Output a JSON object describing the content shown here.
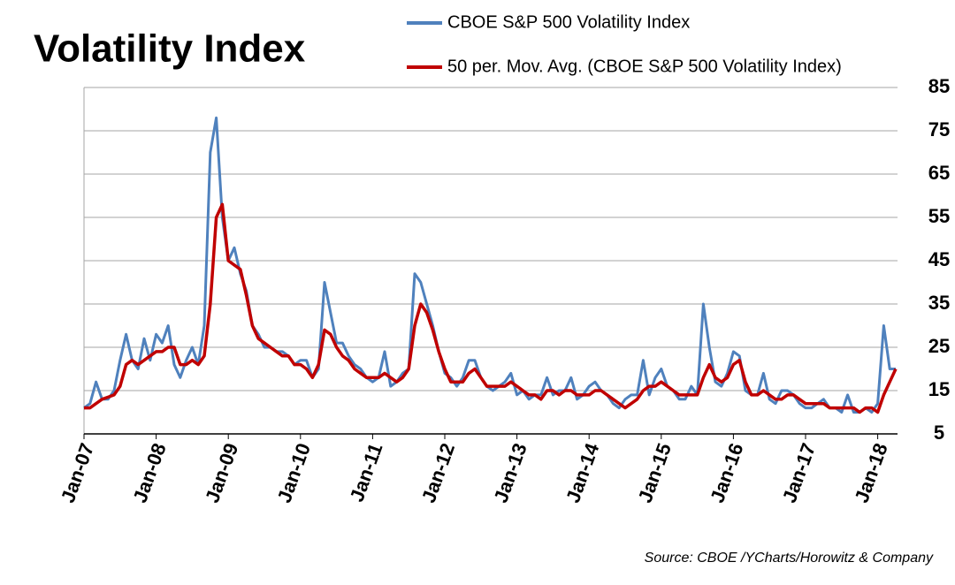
{
  "chart_data": {
    "type": "line",
    "title": "Volatility Index",
    "source": "Source:  CBOE /YCharts/Horowitz & Company",
    "categories": [
      "Jan-07",
      null,
      null,
      null,
      null,
      null,
      null,
      null,
      null,
      null,
      null,
      null,
      "Jan-08",
      null,
      null,
      null,
      null,
      null,
      null,
      null,
      null,
      null,
      null,
      null,
      "Jan-09",
      null,
      null,
      null,
      null,
      null,
      null,
      null,
      null,
      null,
      null,
      null,
      "Jan-10",
      null,
      null,
      null,
      null,
      null,
      null,
      null,
      null,
      null,
      null,
      null,
      "Jan-11",
      null,
      null,
      null,
      null,
      null,
      null,
      null,
      null,
      null,
      null,
      null,
      "Jan-12",
      null,
      null,
      null,
      null,
      null,
      null,
      null,
      null,
      null,
      null,
      null,
      "Jan-13",
      null,
      null,
      null,
      null,
      null,
      null,
      null,
      null,
      null,
      null,
      null,
      "Jan-14",
      null,
      null,
      null,
      null,
      null,
      null,
      null,
      null,
      null,
      null,
      null,
      "Jan-15",
      null,
      null,
      null,
      null,
      null,
      null,
      null,
      null,
      null,
      null,
      null,
      "Jan-16",
      null,
      null,
      null,
      null,
      null,
      null,
      null,
      null,
      null,
      null,
      null,
      "Jan-17",
      null,
      null,
      null,
      null,
      null,
      null,
      null,
      null,
      null,
      null,
      null,
      "Jan-18",
      null,
      null,
      null
    ],
    "series": [
      {
        "name": "CBOE S&P 500 Volatility Index",
        "color": "#4f81bd",
        "values": [
          11,
          12,
          17,
          13,
          13,
          15,
          22,
          28,
          22,
          20,
          27,
          22,
          28,
          26,
          30,
          21,
          18,
          22,
          25,
          21,
          30,
          70,
          78,
          55,
          45,
          48,
          42,
          38,
          30,
          28,
          25,
          25,
          24,
          24,
          23,
          21,
          22,
          22,
          18,
          20,
          40,
          33,
          26,
          26,
          23,
          21,
          20,
          18,
          17,
          18,
          24,
          16,
          17,
          19,
          20,
          42,
          40,
          35,
          30,
          24,
          19,
          18,
          16,
          18,
          22,
          22,
          18,
          16,
          15,
          16,
          17,
          19,
          14,
          15,
          13,
          14,
          14,
          18,
          14,
          15,
          15,
          18,
          13,
          14,
          16,
          17,
          15,
          14,
          12,
          11,
          13,
          14,
          14,
          22,
          14,
          18,
          20,
          16,
          15,
          13,
          13,
          16,
          14,
          35,
          25,
          17,
          16,
          19,
          24,
          23,
          15,
          14,
          14,
          19,
          13,
          12,
          15,
          15,
          14,
          12,
          11,
          11,
          12,
          13,
          11,
          11,
          10,
          14,
          10,
          10,
          11,
          10,
          12,
          30,
          20,
          20
        ]
      },
      {
        "name": "50 per. Mov. Avg. (CBOE S&P 500 Volatility Index)",
        "color": "#c00000",
        "values": [
          11,
          11,
          12,
          13,
          13.5,
          14,
          16,
          21,
          22,
          21,
          22,
          23,
          24,
          24,
          25,
          25,
          21,
          21,
          22,
          21,
          23,
          35,
          55,
          58,
          45,
          44,
          43,
          37,
          30,
          27,
          26,
          25,
          24,
          23,
          23,
          21,
          21,
          20,
          18,
          21,
          29,
          28,
          25,
          23,
          22,
          20,
          19,
          18,
          18,
          18,
          19,
          18,
          17,
          18,
          20,
          30,
          35,
          33,
          29,
          24,
          20,
          17,
          17,
          17,
          19,
          20,
          18,
          16,
          16,
          16,
          16,
          17,
          16,
          15,
          14,
          14,
          13,
          15,
          15,
          14,
          15,
          15,
          14,
          14,
          14,
          15,
          15,
          14,
          13,
          12,
          11,
          12,
          13,
          15,
          16,
          16,
          17,
          16,
          15,
          14,
          14,
          14,
          14,
          18,
          21,
          18,
          17,
          18,
          21,
          22,
          17,
          14,
          14,
          15,
          14,
          13,
          13,
          14,
          14,
          13,
          12,
          12,
          12,
          12,
          11,
          11,
          11,
          11,
          11,
          10,
          11,
          11,
          10,
          14,
          17,
          20
        ]
      }
    ],
    "ylim": [
      5,
      85
    ],
    "yticks": [
      5,
      15,
      25,
      35,
      45,
      55,
      65,
      75,
      85
    ],
    "grid": true
  }
}
